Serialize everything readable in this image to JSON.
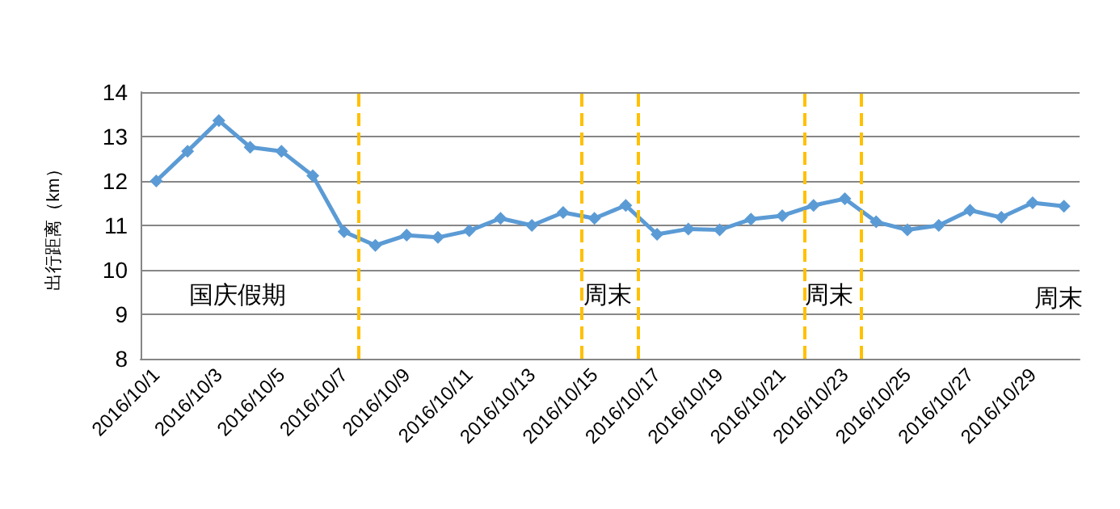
{
  "chart_data": {
    "type": "line",
    "ylabel": "出行距离（km）",
    "x": [
      "2016-10-01",
      "2016-10-02",
      "2016-10-03",
      "2016-10-04",
      "2016-10-05",
      "2016-10-06",
      "2016-10-07",
      "2016-10-08",
      "2016-10-09",
      "2016-10-10",
      "2016-10-11",
      "2016-10-12",
      "2016-10-13",
      "2016-10-14",
      "2016-10-15",
      "2016-10-16",
      "2016-10-17",
      "2016-10-18",
      "2016-10-19",
      "2016-10-20",
      "2016-10-21",
      "2016-10-22",
      "2016-10-23",
      "2016-10-24",
      "2016-10-25",
      "2016-10-26",
      "2016-10-27",
      "2016-10-28",
      "2016-10-29",
      "2016-10-30"
    ],
    "series": [
      {
        "color": "#5b9bd5",
        "values": [
          12.0,
          12.67,
          13.36,
          12.76,
          12.67,
          12.12,
          10.86,
          10.55,
          10.78,
          10.73,
          10.88,
          11.16,
          11.0,
          11.29,
          11.16,
          11.45,
          10.8,
          10.92,
          10.9,
          11.14,
          11.22,
          11.45,
          11.6,
          11.08,
          10.9,
          11.0,
          11.34,
          11.18,
          11.51,
          11.43
        ]
      }
    ],
    "xlim": [
      "2016-09-30T12:00",
      "2016-10-30T12:00"
    ],
    "xticks": [
      {
        "value": "2016-10-01",
        "label": "2016/10/1"
      },
      {
        "value": "2016-10-03",
        "label": "2016/10/3"
      },
      {
        "value": "2016-10-05",
        "label": "2016/10/5"
      },
      {
        "value": "2016-10-07",
        "label": "2016/10/7"
      },
      {
        "value": "2016-10-09",
        "label": "2016/10/9"
      },
      {
        "value": "2016-10-11",
        "label": "2016/10/11"
      },
      {
        "value": "2016-10-13",
        "label": "2016/10/13"
      },
      {
        "value": "2016-10-15",
        "label": "2016/10/15"
      },
      {
        "value": "2016-10-17",
        "label": "2016/10/17"
      },
      {
        "value": "2016-10-19",
        "label": "2016/10/19"
      },
      {
        "value": "2016-10-21",
        "label": "2016/10/21"
      },
      {
        "value": "2016-10-23",
        "label": "2016/10/23"
      },
      {
        "value": "2016-10-25",
        "label": "2016/10/25"
      },
      {
        "value": "2016-10-27",
        "label": "2016/10/27"
      },
      {
        "value": "2016-10-29",
        "label": "2016/10/29"
      }
    ],
    "ylim": [
      8,
      14
    ],
    "yticks": [
      8,
      9,
      10,
      11,
      12,
      13,
      14
    ],
    "ref_lines": [
      {
        "axis": "x",
        "value": "2016-10-07T11:00",
        "color": "#ffc000",
        "line_style": "dashed"
      },
      {
        "axis": "x",
        "value": "2016-10-14T14:00",
        "color": "#ffc000",
        "line_style": "dashed"
      },
      {
        "axis": "x",
        "value": "2016-10-16T09:00",
        "color": "#ffc000",
        "line_style": "dashed"
      },
      {
        "axis": "x",
        "value": "2016-10-21T17:00",
        "color": "#ffc000",
        "line_style": "dashed"
      },
      {
        "axis": "x",
        "value": "2016-10-23T12:00",
        "color": "#ffc000",
        "line_style": "dashed"
      }
    ],
    "annotations": [
      "国庆假期",
      "周末",
      "周末",
      "周末"
    ],
    "grid": "y",
    "marker": "diamond",
    "line_style": "solid"
  }
}
